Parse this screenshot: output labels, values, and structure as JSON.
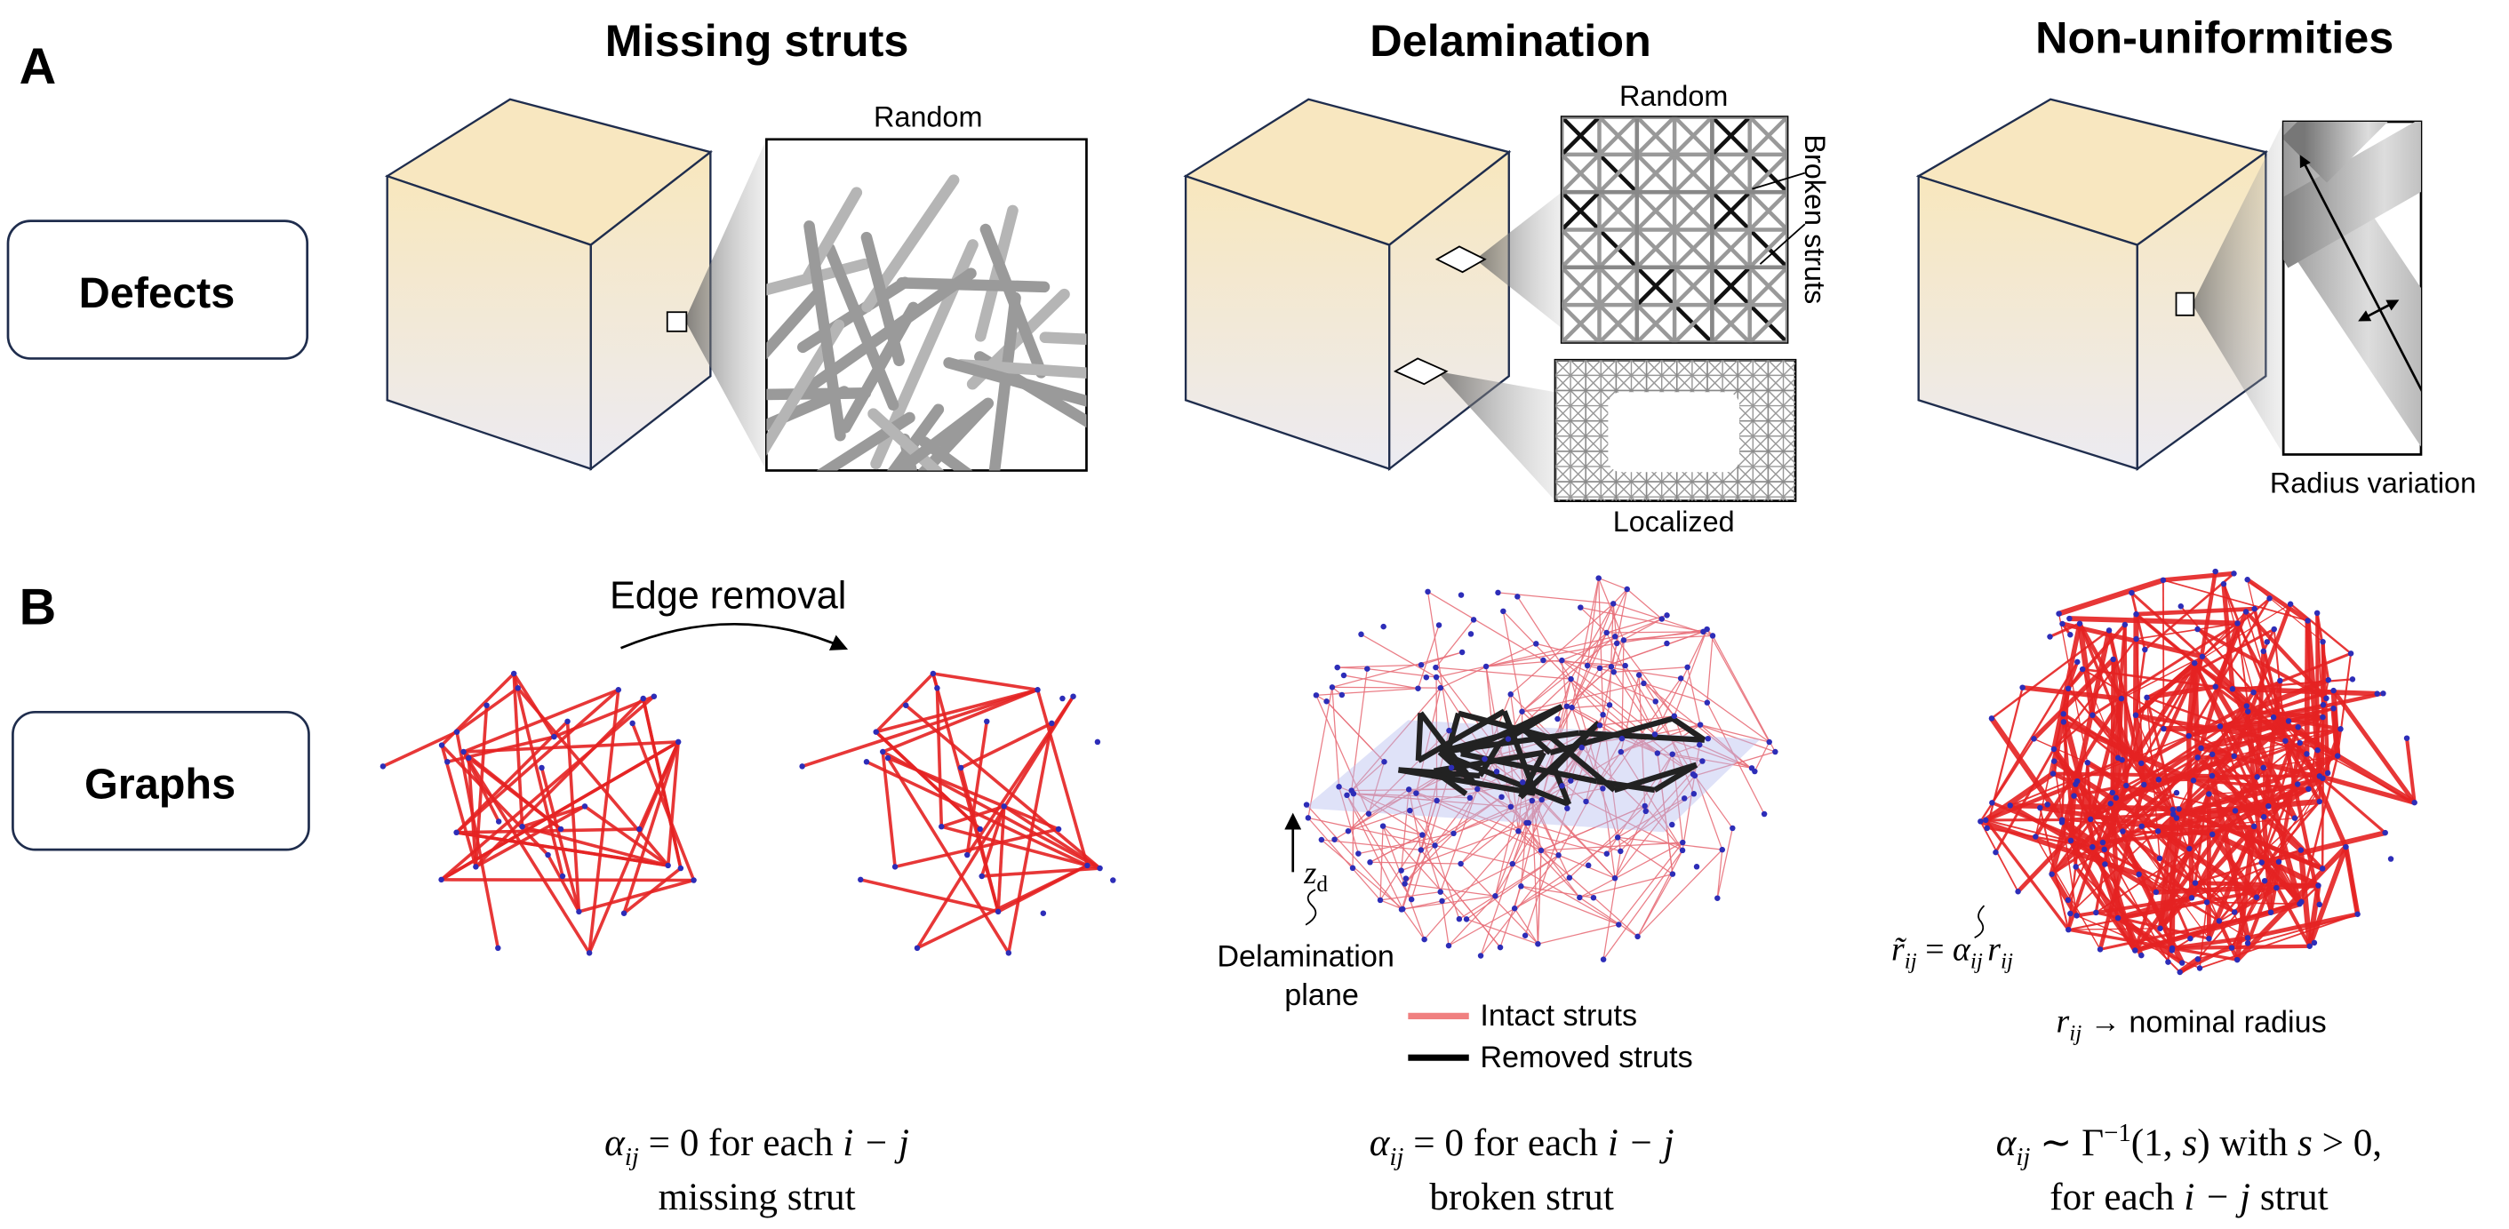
{
  "panel_a": {
    "label": "A",
    "row_label": "Defects",
    "titles": [
      "Missing struts",
      "Delamination",
      "Non-uniformities"
    ],
    "insets": {
      "missing_random": "Random",
      "delamination_random": "Random",
      "broken": "Broken struts",
      "localized": "Localized",
      "radius": "Radius variation"
    }
  },
  "panel_b": {
    "label": "B",
    "row_label": "Graphs",
    "edge_removal": "Edge removal",
    "z": [
      "z",
      "d"
    ],
    "delamination_plane": [
      "Delamination",
      "plane"
    ],
    "legend": [
      "Intact struts",
      "Removed struts"
    ],
    "radius_formula": [
      "r̃",
      "ij",
      " = ",
      "α",
      "ij",
      "r",
      "ij"
    ],
    "nominal": [
      "r",
      "ij",
      " → nominal radius"
    ],
    "captions": [
      {
        "line1": [
          "α",
          "ij",
          " = 0 for each ",
          "i − j"
        ],
        "line2": "missing strut"
      },
      {
        "line1": [
          "α",
          "ij",
          " = 0 for each ",
          "i − j"
        ],
        "line2": "broken strut"
      },
      {
        "line1": [
          "α",
          "ij",
          " ∼ Γ",
          "−1",
          "(1, ",
          "s",
          ") with ",
          "s",
          " > 0,"
        ],
        "line2": [
          "for each ",
          "i − j",
          " strut"
        ]
      }
    ]
  }
}
